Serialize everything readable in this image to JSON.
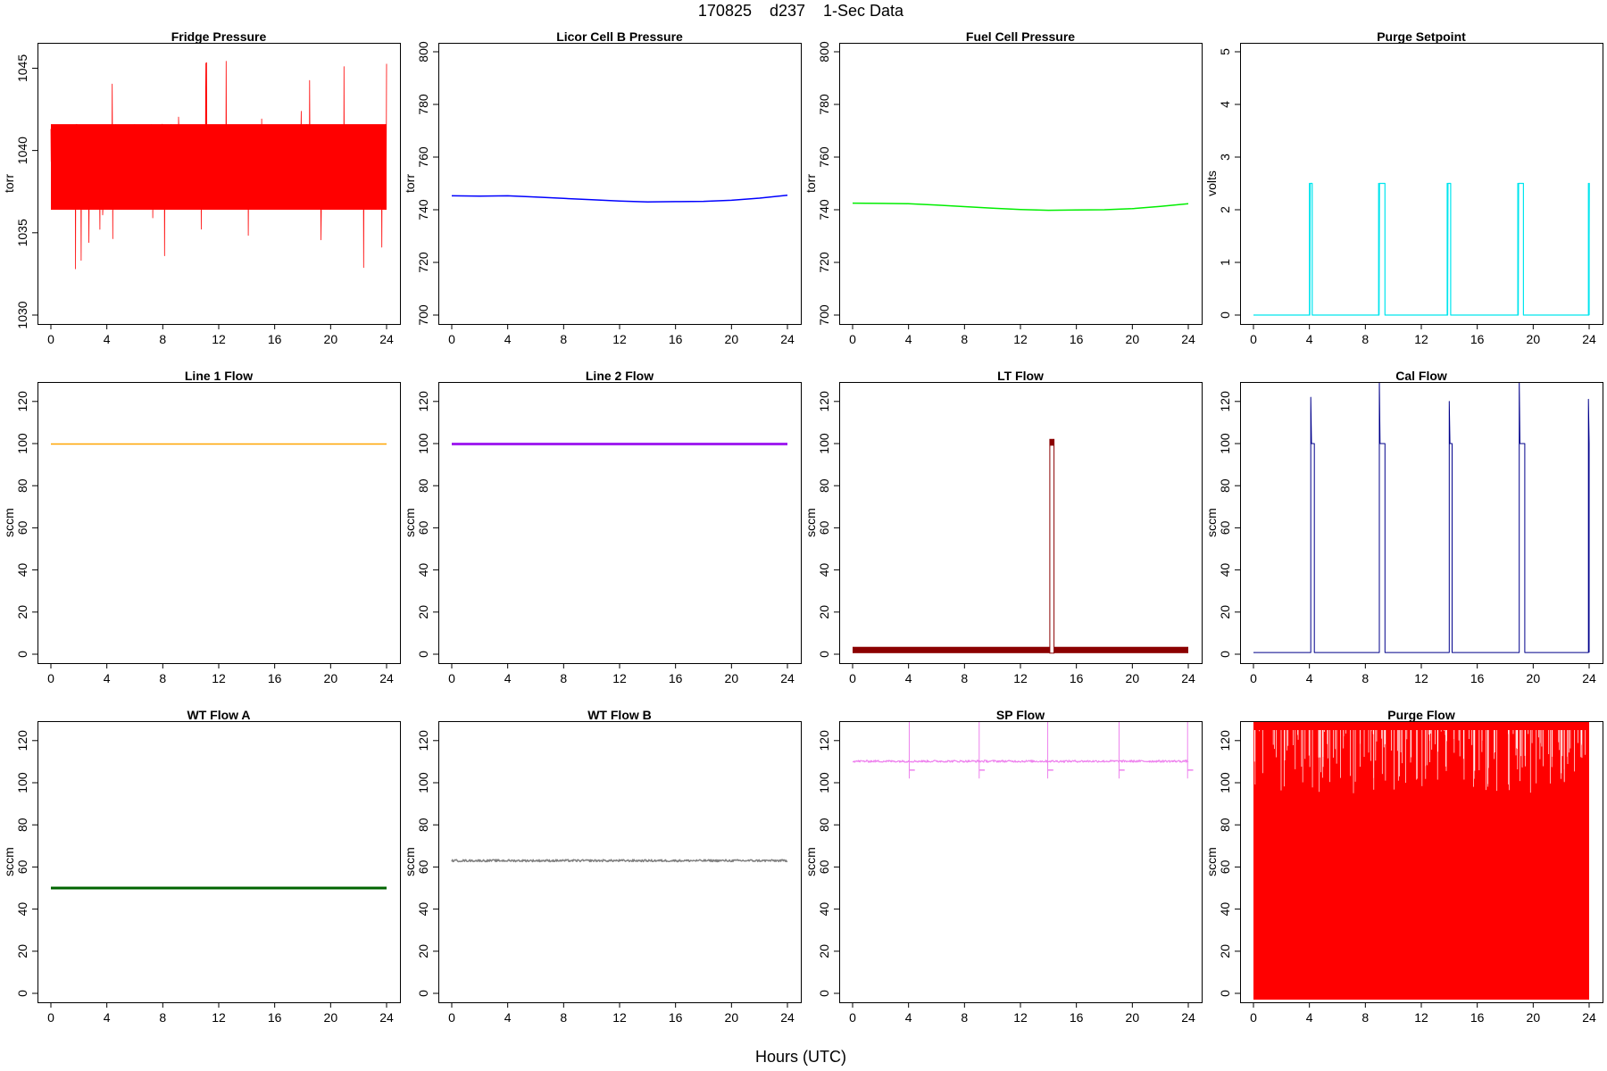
{
  "figure": {
    "title": "170825    d237    1-Sec Data",
    "xlabel": "Hours (UTC)"
  },
  "chart_data": [
    {
      "type": "line",
      "title": "Fridge Pressure",
      "ylabel": "torr",
      "color": "#ff0000",
      "ylim": [
        1030,
        1046
      ],
      "yticks": [
        1030,
        1035,
        1040,
        1045
      ],
      "xlim": [
        0,
        24
      ],
      "xticks": [
        0,
        4,
        8,
        12,
        16,
        20,
        24
      ],
      "series": [
        {
          "kind": "noise-band",
          "x": [
            0,
            24
          ],
          "center": [
            1039.0,
            1039.0
          ],
          "amplitude": 2.6,
          "extremes": [
            1030.5,
            1046.0
          ]
        }
      ]
    },
    {
      "type": "line",
      "title": "Licor Cell B Pressure",
      "ylabel": "torr",
      "color": "#0000ff",
      "ylim": [
        700,
        800
      ],
      "yticks": [
        700,
        720,
        740,
        760,
        780,
        800
      ],
      "xlim": [
        0,
        24
      ],
      "xticks": [
        0,
        4,
        8,
        12,
        16,
        20,
        24
      ],
      "series": [
        {
          "x": [
            0,
            2,
            4,
            6,
            8,
            10,
            12,
            14,
            16,
            18,
            20,
            22,
            24
          ],
          "y": [
            745.3,
            745.2,
            745.3,
            744.8,
            744.3,
            743.8,
            743.3,
            743.0,
            743.1,
            743.2,
            743.6,
            744.4,
            745.5
          ]
        }
      ]
    },
    {
      "type": "line",
      "title": "Fuel Cell Pressure",
      "ylabel": "torr",
      "color": "#00ee00",
      "ylim": [
        700,
        800
      ],
      "yticks": [
        700,
        720,
        740,
        760,
        780,
        800
      ],
      "xlim": [
        0,
        24
      ],
      "xticks": [
        0,
        4,
        8,
        12,
        16,
        20,
        24
      ],
      "series": [
        {
          "x": [
            0,
            2,
            4,
            6,
            8,
            10,
            12,
            14,
            16,
            18,
            20,
            22,
            24
          ],
          "y": [
            742.5,
            742.4,
            742.3,
            741.8,
            741.2,
            740.6,
            740.1,
            739.8,
            739.9,
            740.0,
            740.4,
            741.3,
            742.3
          ]
        }
      ]
    },
    {
      "type": "line",
      "title": "Purge Setpoint",
      "ylabel": "volts",
      "color": "#00e5ee",
      "ylim": [
        0,
        5
      ],
      "yticks": [
        0,
        1,
        2,
        3,
        4,
        5
      ],
      "xlim": [
        0,
        24
      ],
      "xticks": [
        0,
        4,
        8,
        12,
        16,
        20,
        24
      ],
      "series": [
        {
          "kind": "pulses",
          "baseline": 0.0,
          "high": 2.5,
          "pulses": [
            [
              4.0,
              4.2
            ],
            [
              8.95,
              9.4
            ],
            [
              13.85,
              14.1
            ],
            [
              18.9,
              19.3
            ],
            [
              23.95,
              24.0
            ]
          ]
        }
      ]
    },
    {
      "type": "line",
      "title": "Line 1 Flow",
      "ylabel": "sccm",
      "color": "#ffa500",
      "ylim": [
        0,
        125
      ],
      "yticks": [
        0,
        20,
        40,
        60,
        80,
        100,
        120
      ],
      "xlim": [
        0,
        24
      ],
      "xticks": [
        0,
        4,
        8,
        12,
        16,
        20,
        24
      ],
      "series": [
        {
          "x": [
            0,
            24
          ],
          "y": [
            99.8,
            99.8
          ]
        }
      ]
    },
    {
      "type": "line",
      "title": "Line 2 Flow",
      "ylabel": "sccm",
      "color": "#a020f0",
      "ylim": [
        0,
        125
      ],
      "yticks": [
        0,
        20,
        40,
        60,
        80,
        100,
        120
      ],
      "xlim": [
        0,
        24
      ],
      "xticks": [
        0,
        4,
        8,
        12,
        16,
        20,
        24
      ],
      "series": [
        {
          "kind": "thick",
          "x": [
            0,
            24
          ],
          "y": [
            99.8,
            99.8
          ]
        }
      ]
    },
    {
      "type": "line",
      "title": "LT Flow",
      "ylabel": "sccm",
      "color": "#8b0000",
      "ylim": [
        0,
        125
      ],
      "yticks": [
        0,
        20,
        40,
        60,
        80,
        100,
        120
      ],
      "xlim": [
        0,
        24
      ],
      "xticks": [
        0,
        4,
        8,
        12,
        16,
        20,
        24
      ],
      "series": [
        {
          "kind": "band-with-spike",
          "band": [
            0.5,
            3.5
          ],
          "spike": [
            14.1,
            14.4
          ],
          "spike_y": 102
        }
      ]
    },
    {
      "type": "line",
      "title": "Cal Flow",
      "ylabel": "sccm",
      "color": "#00008b",
      "ylim": [
        0,
        125
      ],
      "yticks": [
        0,
        20,
        40,
        60,
        80,
        100,
        120
      ],
      "xlim": [
        0,
        24
      ],
      "xticks": [
        0,
        4,
        8,
        12,
        16,
        20,
        24
      ],
      "series": [
        {
          "kind": "pulses-with-spikes",
          "baseline": 0.8,
          "high": 100,
          "pulses": [
            [
              4.1,
              4.35
            ],
            [
              9.0,
              9.4
            ],
            [
              14.0,
              14.2
            ],
            [
              19.0,
              19.4
            ],
            [
              23.95,
              24.0
            ]
          ],
          "spikes": [
            122,
            130,
            120,
            130,
            121
          ]
        }
      ]
    },
    {
      "type": "line",
      "title": "WT Flow A",
      "ylabel": "sccm",
      "color": "#006400",
      "ylim": [
        0,
        125
      ],
      "yticks": [
        0,
        20,
        40,
        60,
        80,
        100,
        120
      ],
      "xlim": [
        0,
        24
      ],
      "xticks": [
        0,
        4,
        8,
        12,
        16,
        20,
        24
      ],
      "series": [
        {
          "kind": "thick",
          "x": [
            0,
            24
          ],
          "y": [
            50.0,
            50.0
          ]
        }
      ]
    },
    {
      "type": "line",
      "title": "WT Flow B",
      "ylabel": "sccm",
      "color": "#808080",
      "ylim": [
        0,
        125
      ],
      "yticks": [
        0,
        20,
        40,
        60,
        80,
        100,
        120
      ],
      "xlim": [
        0,
        24
      ],
      "xticks": [
        0,
        4,
        8,
        12,
        16,
        20,
        24
      ],
      "series": [
        {
          "x": [
            0,
            24
          ],
          "y": [
            63.0,
            63.0
          ],
          "noise": 0.5
        }
      ]
    },
    {
      "type": "line",
      "title": "SP Flow",
      "ylabel": "sccm",
      "color": "#ee82ee",
      "ylim": [
        0,
        125
      ],
      "yticks": [
        0,
        20,
        40,
        60,
        80,
        100,
        120
      ],
      "xlim": [
        0,
        24
      ],
      "xticks": [
        0,
        4,
        8,
        12,
        16,
        20,
        24
      ],
      "series": [
        {
          "kind": "level-with-glitches",
          "baseline": 110.2,
          "events": [
            4.05,
            9.05,
            13.95,
            19.05,
            23.95
          ],
          "dip": 106
        }
      ]
    },
    {
      "type": "line",
      "title": "Purge Flow",
      "ylabel": "sccm",
      "color": "#ff0000",
      "ylim": [
        0,
        125
      ],
      "yticks": [
        0,
        20,
        40,
        60,
        80,
        100,
        120
      ],
      "xlim": [
        0,
        24
      ],
      "xticks": [
        0,
        4,
        8,
        12,
        16,
        20,
        24
      ],
      "series": [
        {
          "kind": "saturated",
          "low": -3,
          "high": 135
        }
      ]
    }
  ]
}
